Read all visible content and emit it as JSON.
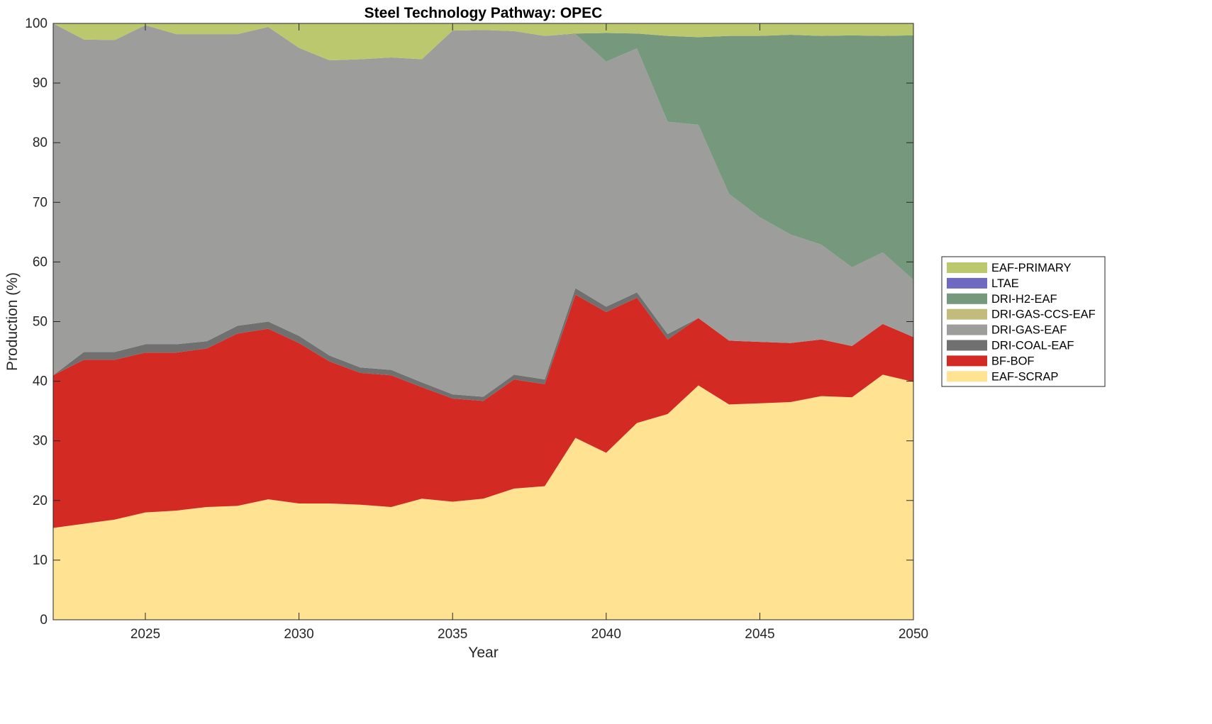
{
  "chart_data": {
    "type": "area",
    "stacked": true,
    "title": "Steel Technology Pathway: OPEC",
    "xlabel": "Year",
    "ylabel": "Production (%)",
    "xlim": [
      2022,
      2050
    ],
    "ylim": [
      0,
      100
    ],
    "x_ticks": [
      2025,
      2030,
      2035,
      2040,
      2045,
      2050
    ],
    "y_ticks": [
      0,
      10,
      20,
      30,
      40,
      50,
      60,
      70,
      80,
      90,
      100
    ],
    "grid": false,
    "legend_position": "right",
    "legend_order": [
      "EAF-PRIMARY",
      "LTAE",
      "DRI-H2-EAF",
      "DRI-GAS-CCS-EAF",
      "DRI-GAS-EAF",
      "DRI-COAL-EAF",
      "BF-BOF",
      "EAF-SCRAP"
    ],
    "x": [
      2022,
      2023,
      2024,
      2025,
      2026,
      2027,
      2028,
      2029,
      2030,
      2031,
      2032,
      2033,
      2034,
      2035,
      2036,
      2037,
      2038,
      2039,
      2040,
      2041,
      2042,
      2043,
      2044,
      2045,
      2046,
      2047,
      2048,
      2049,
      2050
    ],
    "series": [
      {
        "name": "EAF-SCRAP",
        "color": "#FFE393",
        "values": [
          15.4,
          16.1,
          16.8,
          18.0,
          18.3,
          18.9,
          19.1,
          20.2,
          19.5,
          19.5,
          19.3,
          18.9,
          20.3,
          19.8,
          20.3,
          22.0,
          22.4,
          30.5,
          28.0,
          33.0,
          34.5,
          39.3,
          36.1,
          36.3,
          36.5,
          37.5,
          37.3,
          41.1,
          39.9
        ]
      },
      {
        "name": "BF-BOF",
        "color": "#D42A24",
        "values": [
          25.6,
          27.5,
          26.8,
          26.8,
          26.5,
          26.6,
          28.9,
          28.6,
          26.9,
          23.8,
          22.1,
          22.1,
          18.7,
          17.3,
          16.4,
          18.3,
          17.1,
          24.0,
          23.6,
          21.0,
          12.5,
          11.3,
          10.7,
          10.3,
          9.9,
          9.5,
          8.6,
          8.5,
          7.5
        ]
      },
      {
        "name": "DRI-COAL-EAF",
        "color": "#707070",
        "values": [
          0.0,
          1.3,
          1.3,
          1.4,
          1.4,
          1.2,
          1.3,
          1.2,
          1.2,
          1.0,
          0.9,
          0.9,
          0.8,
          0.7,
          0.7,
          0.8,
          0.8,
          1.1,
          0.9,
          0.9,
          0.9,
          0.0,
          0.0,
          0.0,
          0.0,
          0.0,
          0.0,
          0.0,
          0.0
        ]
      },
      {
        "name": "DRI-GAS-EAF",
        "color": "#9D9D9B",
        "values": [
          59.0,
          52.4,
          52.3,
          53.5,
          52.0,
          51.5,
          48.9,
          49.4,
          48.3,
          49.5,
          51.7,
          52.4,
          54.2,
          61.0,
          61.5,
          57.6,
          57.6,
          42.6,
          41.1,
          40.9,
          35.6,
          32.4,
          24.6,
          20.9,
          18.2,
          15.9,
          13.2,
          12.0,
          9.6
        ]
      },
      {
        "name": "DRI-GAS-CCS-EAF",
        "color": "#C2BB7C",
        "values": [
          0,
          0,
          0,
          0,
          0,
          0,
          0,
          0,
          0,
          0,
          0,
          0,
          0,
          0,
          0,
          0,
          0,
          0,
          0,
          0,
          0,
          0,
          0,
          0,
          0,
          0,
          0,
          0,
          0
        ]
      },
      {
        "name": "DRI-H2-EAF",
        "color": "#76997D",
        "values": [
          0,
          0,
          0,
          0,
          0,
          0,
          0,
          0,
          0,
          0,
          0,
          0,
          0,
          0,
          0,
          0,
          0,
          0.1,
          4.8,
          2.5,
          14.4,
          14.7,
          26.5,
          30.4,
          33.5,
          35.0,
          38.9,
          36.3,
          41.0
        ]
      },
      {
        "name": "LTAE",
        "color": "#6F6ABF",
        "values": [
          0,
          0,
          0,
          0,
          0,
          0,
          0,
          0,
          0,
          0,
          0,
          0,
          0,
          0,
          0,
          0,
          0,
          0,
          0,
          0,
          0,
          0,
          0,
          0,
          0,
          0,
          0,
          0,
          0
        ]
      },
      {
        "name": "EAF-PRIMARY",
        "color": "#BCC86D",
        "values": [
          0.0,
          2.7,
          2.8,
          0.3,
          1.8,
          1.8,
          1.8,
          0.6,
          4.1,
          6.2,
          6.0,
          5.7,
          6.0,
          1.2,
          1.1,
          1.3,
          2.1,
          1.7,
          1.6,
          1.7,
          2.1,
          2.3,
          2.1,
          2.1,
          1.9,
          2.1,
          2.0,
          2.1,
          2.0
        ]
      }
    ]
  }
}
